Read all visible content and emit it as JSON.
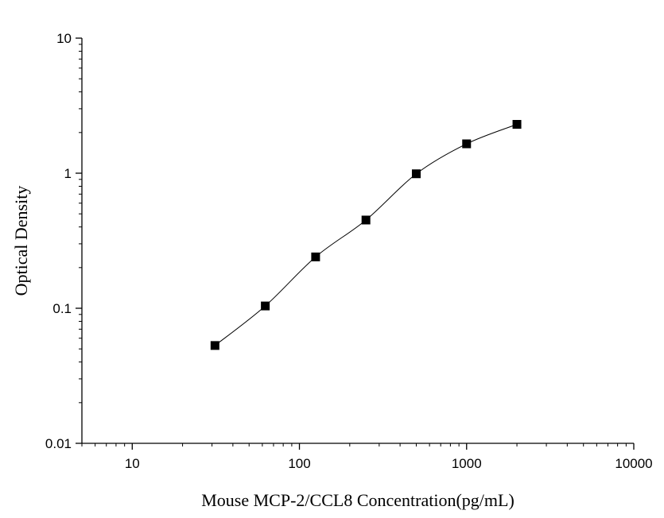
{
  "chart_data": {
    "type": "scatter",
    "xlabel": "Mouse MCP-2/CCL8 Concentration(pg/mL)",
    "ylabel": "Optical Density",
    "x_scale": "log",
    "y_scale": "log",
    "xlim": [
      5,
      10000
    ],
    "ylim": [
      0.01,
      10
    ],
    "x_ticks": [
      {
        "value": 10,
        "label": "10"
      },
      {
        "value": 100,
        "label": "100"
      },
      {
        "value": 1000,
        "label": "1000"
      },
      {
        "value": 10000,
        "label": "10000"
      }
    ],
    "y_ticks": [
      {
        "value": 0.01,
        "label": "0.01"
      },
      {
        "value": 0.1,
        "label": "0.1"
      },
      {
        "value": 1,
        "label": "1"
      },
      {
        "value": 10,
        "label": "10"
      }
    ],
    "grid": false,
    "series": [
      {
        "x": [
          31.25,
          62.5,
          125,
          250,
          500,
          1000,
          2000
        ],
        "y": [
          0.053,
          0.104,
          0.24,
          0.45,
          0.99,
          1.65,
          2.3
        ]
      }
    ],
    "fit_curve": true,
    "colors": {
      "marker": "#000000",
      "line": "#000000",
      "axis": "#000000"
    }
  }
}
